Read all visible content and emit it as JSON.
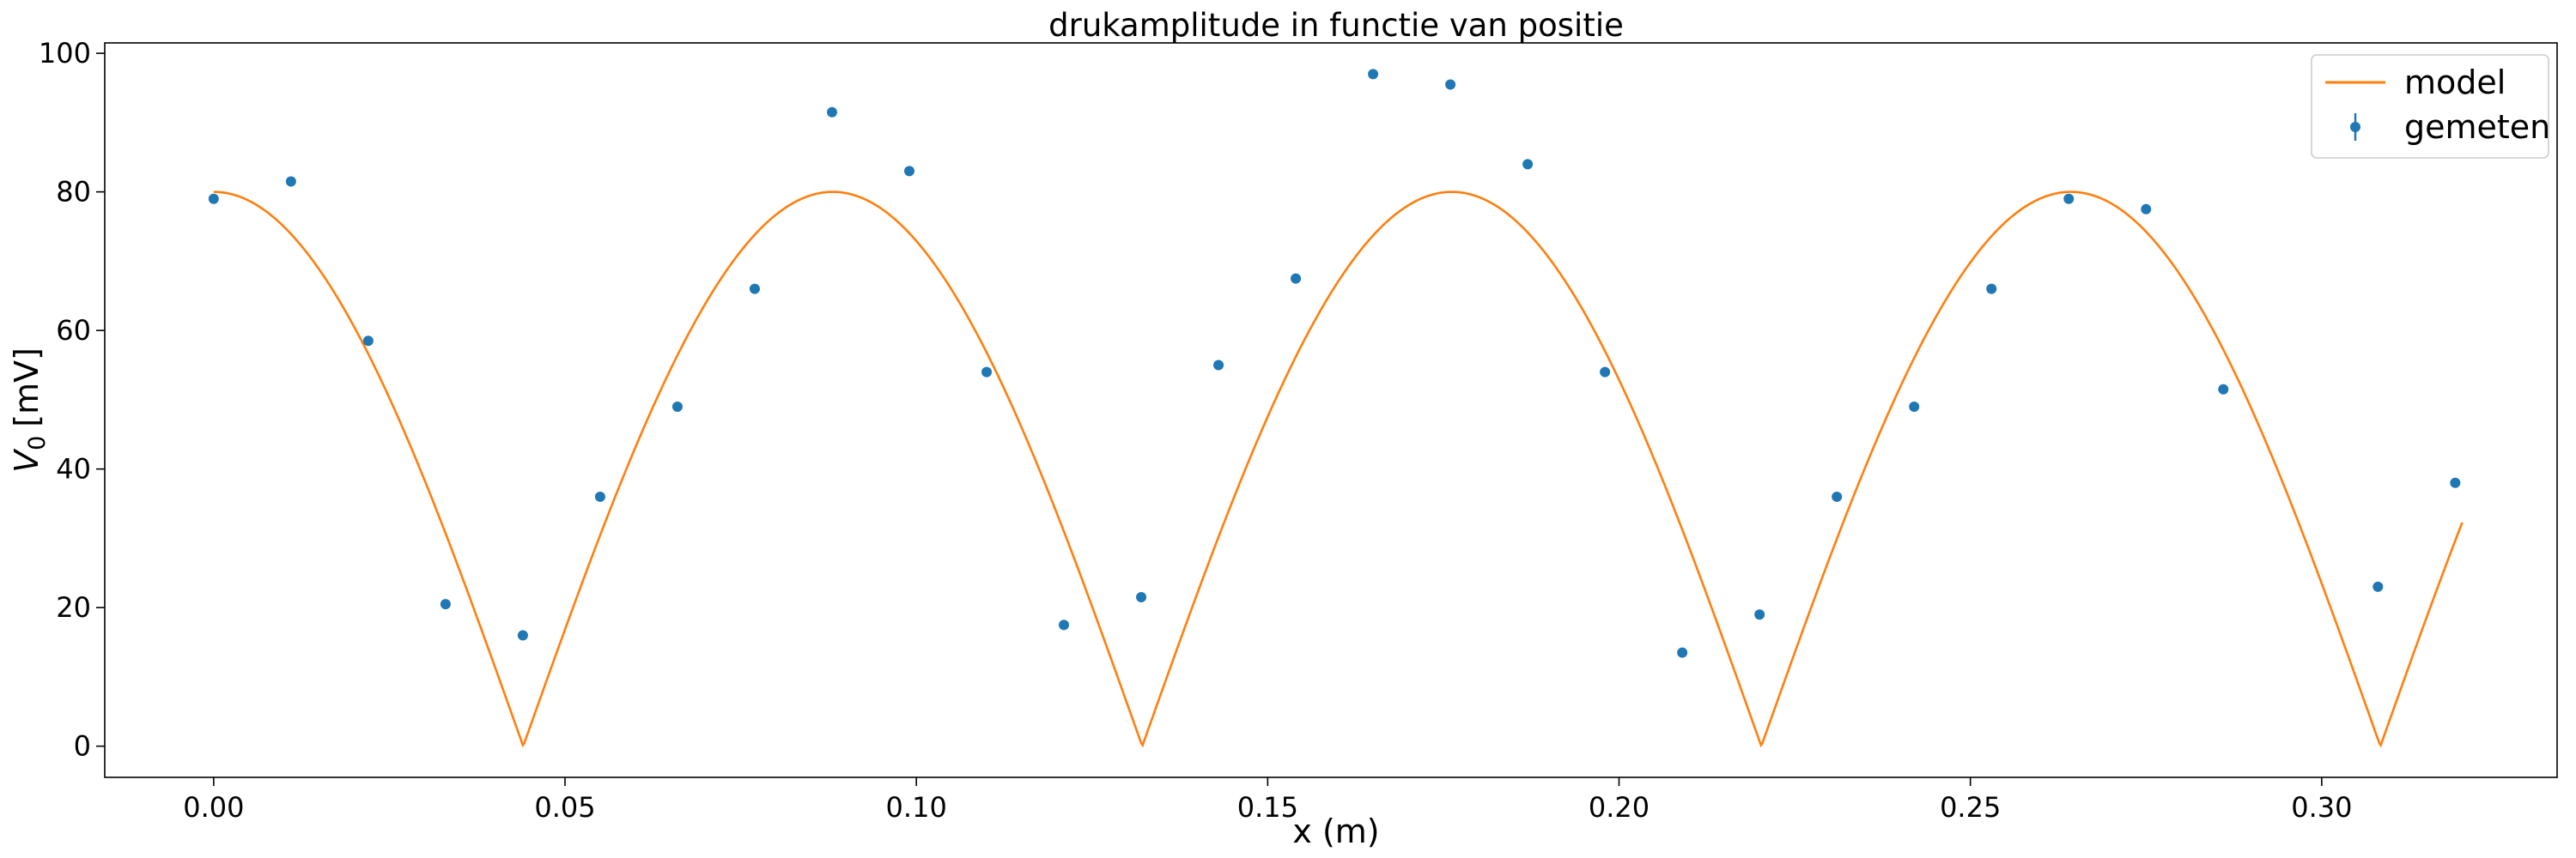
{
  "chart_data": {
    "type": "scatter",
    "title": "drukamplitude in functie van positie",
    "xlabel": "x (m)",
    "ylabel": "V",
    "ylabel_sub": "0",
    "ylabel_unit": "[mV]",
    "xlim": [
      -0.0155,
      0.3335
    ],
    "ylim": [
      -4.5,
      101.5
    ],
    "xticks": [
      0.0,
      0.05,
      0.1,
      0.15,
      0.2,
      0.25,
      0.3
    ],
    "xtick_labels": [
      "0.00",
      "0.05",
      "0.10",
      "0.15",
      "0.20",
      "0.25",
      "0.30"
    ],
    "yticks": [
      0,
      20,
      40,
      60,
      80,
      100
    ],
    "ytick_labels": [
      "0",
      "20",
      "40",
      "60",
      "80",
      "100"
    ],
    "grid": false,
    "legend_position": "top-right",
    "series": [
      {
        "name": "model",
        "kind": "line",
        "color": "#ff7f0e",
        "function": "80*|cos(2*pi*x/0.1762)|",
        "amplitude": 80,
        "period": 0.1762,
        "x_range": [
          0.0,
          0.32
        ]
      },
      {
        "name": "gemeten",
        "kind": "errorbar-points",
        "color": "#1f77b4",
        "x": [
          0.0,
          0.011,
          0.022,
          0.033,
          0.044,
          0.055,
          0.066,
          0.077,
          0.088,
          0.099,
          0.11,
          0.121,
          0.132,
          0.143,
          0.154,
          0.165,
          0.176,
          0.187,
          0.198,
          0.209,
          0.22,
          0.231,
          0.242,
          0.253,
          0.264,
          0.275,
          0.286,
          0.308,
          0.319
        ],
        "y": [
          79,
          81.5,
          58.5,
          20.5,
          16,
          36,
          49,
          66,
          91.5,
          83,
          54,
          17.5,
          21.5,
          55,
          67.5,
          97,
          95.5,
          84,
          54,
          13.5,
          19,
          36,
          49,
          66,
          79,
          77.5,
          51.5,
          23,
          38
        ]
      }
    ]
  }
}
